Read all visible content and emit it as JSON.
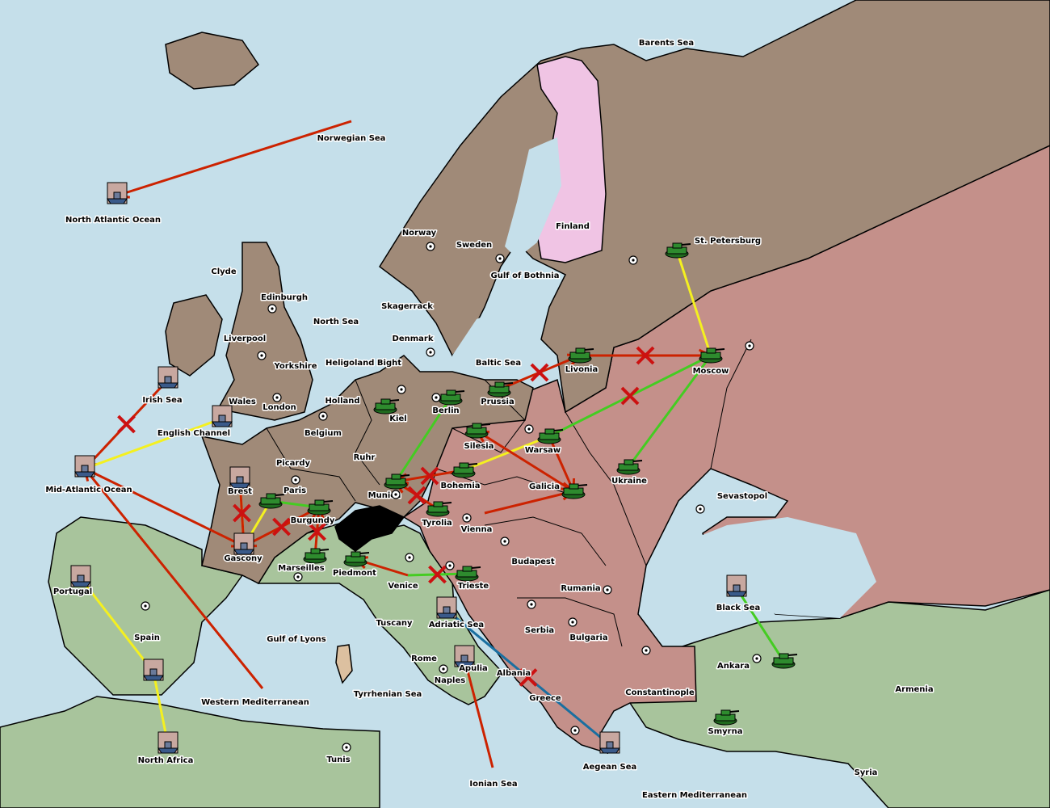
{
  "colors": {
    "water": "#c5dfea",
    "brown_power": "#a08a78",
    "pink_power": "#c4908a",
    "green_land": "#a8c49c",
    "finland": "#f0c4e4",
    "impassable": "#000000",
    "order_move": "#cc2200",
    "order_support_yellow": "#f4f020",
    "order_support_green": "#44cc22",
    "order_convoy": "#1a6fa0",
    "failed_mark": "#cc1111",
    "army": "#2e8b2e"
  },
  "provinces": [
    {
      "name": "Barents Sea",
      "kind": "sea"
    },
    {
      "name": "Norwegian Sea",
      "kind": "sea"
    },
    {
      "name": "North Atlantic Ocean",
      "kind": "sea"
    },
    {
      "name": "Norway",
      "kind": "land"
    },
    {
      "name": "Sweden",
      "kind": "land"
    },
    {
      "name": "Finland",
      "kind": "land"
    },
    {
      "name": "St. Petersburg",
      "kind": "land"
    },
    {
      "name": "Clyde",
      "kind": "land"
    },
    {
      "name": "Edinburgh",
      "kind": "land"
    },
    {
      "name": "Gulf of Bothnia",
      "kind": "sea"
    },
    {
      "name": "Skagerrack",
      "kind": "sea"
    },
    {
      "name": "North Sea",
      "kind": "sea"
    },
    {
      "name": "Liverpool",
      "kind": "land"
    },
    {
      "name": "Denmark",
      "kind": "land"
    },
    {
      "name": "Yorkshire",
      "kind": "land"
    },
    {
      "name": "Heligoland Bight",
      "kind": "sea"
    },
    {
      "name": "Baltic Sea",
      "kind": "sea"
    },
    {
      "name": "Livonia",
      "kind": "land"
    },
    {
      "name": "Moscow",
      "kind": "land"
    },
    {
      "name": "Irish Sea",
      "kind": "sea"
    },
    {
      "name": "Wales",
      "kind": "land"
    },
    {
      "name": "Holland",
      "kind": "land"
    },
    {
      "name": "Prussia",
      "kind": "land"
    },
    {
      "name": "London",
      "kind": "land"
    },
    {
      "name": "Berlin",
      "kind": "land"
    },
    {
      "name": "Kiel",
      "kind": "land"
    },
    {
      "name": "English Channel",
      "kind": "sea"
    },
    {
      "name": "Belgium",
      "kind": "land"
    },
    {
      "name": "Warsaw",
      "kind": "land"
    },
    {
      "name": "Silesia",
      "kind": "land"
    },
    {
      "name": "Ruhr",
      "kind": "land"
    },
    {
      "name": "Picardy",
      "kind": "land"
    },
    {
      "name": "Ukraine",
      "kind": "land"
    },
    {
      "name": "Mid-Atlantic Ocean",
      "kind": "sea"
    },
    {
      "name": "Brest",
      "kind": "land"
    },
    {
      "name": "Paris",
      "kind": "land"
    },
    {
      "name": "Bohemia",
      "kind": "land"
    },
    {
      "name": "Galicia",
      "kind": "land"
    },
    {
      "name": "Munich",
      "kind": "land"
    },
    {
      "name": "Sevastopol",
      "kind": "land"
    },
    {
      "name": "Burgundy",
      "kind": "land"
    },
    {
      "name": "Tyrolia",
      "kind": "land"
    },
    {
      "name": "Vienna",
      "kind": "land"
    },
    {
      "name": "Gascony",
      "kind": "land"
    },
    {
      "name": "Budapest",
      "kind": "land"
    },
    {
      "name": "Marseilles",
      "kind": "land"
    },
    {
      "name": "Piedmont",
      "kind": "land"
    },
    {
      "name": "Venice",
      "kind": "land"
    },
    {
      "name": "Trieste",
      "kind": "land"
    },
    {
      "name": "Portugal",
      "kind": "land"
    },
    {
      "name": "Rumania",
      "kind": "land"
    },
    {
      "name": "Black Sea",
      "kind": "sea"
    },
    {
      "name": "Tuscany",
      "kind": "land"
    },
    {
      "name": "Adriatic Sea",
      "kind": "sea"
    },
    {
      "name": "Serbia",
      "kind": "land"
    },
    {
      "name": "Spain",
      "kind": "land"
    },
    {
      "name": "Gulf of Lyons",
      "kind": "sea"
    },
    {
      "name": "Bulgaria",
      "kind": "land"
    },
    {
      "name": "Ankara",
      "kind": "land"
    },
    {
      "name": "Armenia",
      "kind": "land"
    },
    {
      "name": "Rome",
      "kind": "land"
    },
    {
      "name": "Apulia",
      "kind": "land"
    },
    {
      "name": "Albania",
      "kind": "land"
    },
    {
      "name": "Naples",
      "kind": "land"
    },
    {
      "name": "Constantinople",
      "kind": "land"
    },
    {
      "name": "Greece",
      "kind": "land"
    },
    {
      "name": "Tyrrhenian Sea",
      "kind": "sea"
    },
    {
      "name": "Western Mediterranean",
      "kind": "sea"
    },
    {
      "name": "Smyrna",
      "kind": "land"
    },
    {
      "name": "North Africa",
      "kind": "land"
    },
    {
      "name": "Tunis",
      "kind": "land"
    },
    {
      "name": "Aegean Sea",
      "kind": "sea"
    },
    {
      "name": "Syria",
      "kind": "land"
    },
    {
      "name": "Ionian Sea",
      "kind": "sea"
    },
    {
      "name": "Eastern Mediterranean",
      "kind": "sea"
    }
  ],
  "units": [
    {
      "type": "army",
      "province": "St. Petersburg"
    },
    {
      "type": "army",
      "province": "Livonia"
    },
    {
      "type": "army",
      "province": "Moscow"
    },
    {
      "type": "army",
      "province": "Warsaw"
    },
    {
      "type": "army",
      "province": "Silesia"
    },
    {
      "type": "army",
      "province": "Berlin"
    },
    {
      "type": "army",
      "province": "Prussia"
    },
    {
      "type": "army",
      "province": "Kiel"
    },
    {
      "type": "army",
      "province": "Bohemia"
    },
    {
      "type": "army",
      "province": "Munich"
    },
    {
      "type": "army",
      "province": "Tyrolia"
    },
    {
      "type": "army",
      "province": "Galicia"
    },
    {
      "type": "army",
      "province": "Ukraine"
    },
    {
      "type": "army",
      "province": "Burgundy"
    },
    {
      "type": "army",
      "province": "Paris"
    },
    {
      "type": "army",
      "province": "Marseilles"
    },
    {
      "type": "army",
      "province": "Piedmont"
    },
    {
      "type": "army",
      "province": "Trieste"
    },
    {
      "type": "army",
      "province": "Ankara"
    },
    {
      "type": "army",
      "province": "Smyrna"
    },
    {
      "type": "fleet",
      "province": "North Atlantic Ocean"
    },
    {
      "type": "fleet",
      "province": "Irish Sea"
    },
    {
      "type": "fleet",
      "province": "English Channel"
    },
    {
      "type": "fleet",
      "province": "Mid-Atlantic Ocean"
    },
    {
      "type": "fleet",
      "province": "Brest"
    },
    {
      "type": "fleet",
      "province": "Gascony"
    },
    {
      "type": "fleet",
      "province": "Portugal"
    },
    {
      "type": "fleet",
      "province": "Spain"
    },
    {
      "type": "fleet",
      "province": "North Africa"
    },
    {
      "type": "fleet",
      "province": "Adriatic Sea"
    },
    {
      "type": "fleet",
      "province": "Apulia"
    },
    {
      "type": "fleet",
      "province": "Black Sea"
    },
    {
      "type": "fleet",
      "province": "Aegean Sea"
    }
  ],
  "orders": [
    {
      "kind": "move",
      "from": "Norwegian Sea",
      "to": "North Atlantic Ocean",
      "failed": false
    },
    {
      "kind": "move",
      "from": "Irish Sea",
      "to": "Mid-Atlantic Ocean",
      "failed": true
    },
    {
      "kind": "support",
      "color": "yellow",
      "from": "English Channel",
      "to": "Mid-Atlantic Ocean",
      "failed": false
    },
    {
      "kind": "move",
      "from": "Western Mediterranean",
      "to": "Mid-Atlantic Ocean",
      "failed": false
    },
    {
      "kind": "move",
      "from": "Mid-Atlantic Ocean",
      "to": "Gascony",
      "failed": false
    },
    {
      "kind": "support",
      "color": "yellow",
      "from": "Spain",
      "to": "Portugal",
      "failed": false
    },
    {
      "kind": "support",
      "color": "yellow",
      "from": "North Africa",
      "to": "Spain",
      "failed": false
    },
    {
      "kind": "support",
      "color": "yellow",
      "from": "Brest",
      "to": "Gascony",
      "failed": false
    },
    {
      "kind": "support",
      "color": "yellow",
      "from": "Paris",
      "to": "Gascony",
      "failed": false
    },
    {
      "kind": "move",
      "from": "Burgundy",
      "to": "Gascony",
      "failed": true
    },
    {
      "kind": "move",
      "from": "Brest",
      "to": "Gascony",
      "failed": true
    },
    {
      "kind": "move",
      "from": "Marseilles",
      "to": "Burgundy",
      "failed": true
    },
    {
      "kind": "support",
      "color": "green",
      "from": "Burgundy",
      "to": "Paris",
      "failed": false
    },
    {
      "kind": "move",
      "from": "Ionian Sea",
      "to": "Apulia",
      "failed": false
    },
    {
      "kind": "convoy",
      "from": "Aegean Sea",
      "to": "Adriatic Sea",
      "failed": true
    },
    {
      "kind": "support",
      "color": "green",
      "from": "Black Sea",
      "to": "Ankara",
      "failed": false
    },
    {
      "kind": "support",
      "color": "green",
      "from": "Trieste",
      "to": "Venice",
      "failed": true
    },
    {
      "kind": "move",
      "from": "Venice",
      "to": "Piedmont",
      "failed": false
    },
    {
      "kind": "move",
      "from": "Prussia",
      "to": "Livonia",
      "failed": true
    },
    {
      "kind": "move",
      "from": "Livonia",
      "to": "Moscow",
      "failed": true
    },
    {
      "kind": "support",
      "color": "yellow",
      "from": "St. Petersburg",
      "to": "Moscow",
      "failed": false
    },
    {
      "kind": "support",
      "color": "green",
      "from": "Warsaw",
      "to": "Moscow",
      "failed": true
    },
    {
      "kind": "support",
      "color": "green",
      "from": "Ukraine",
      "to": "Moscow",
      "failed": false
    },
    {
      "kind": "support",
      "color": "yellow",
      "from": "Warsaw",
      "to": "Bohemia",
      "failed": false
    },
    {
      "kind": "move",
      "from": "Warsaw",
      "to": "Galicia",
      "failed": false
    },
    {
      "kind": "move",
      "from": "Galicia",
      "to": "Silesia",
      "failed": false
    },
    {
      "kind": "move",
      "from": "Bohemia",
      "to": "Munich",
      "failed": true
    },
    {
      "kind": "move",
      "from": "Tyrolia",
      "to": "Munich",
      "failed": true
    },
    {
      "kind": "support",
      "color": "green",
      "from": "Berlin",
      "to": "Munich",
      "failed": false
    },
    {
      "kind": "move",
      "from": "Vienna",
      "to": "Galicia",
      "failed": false
    }
  ]
}
